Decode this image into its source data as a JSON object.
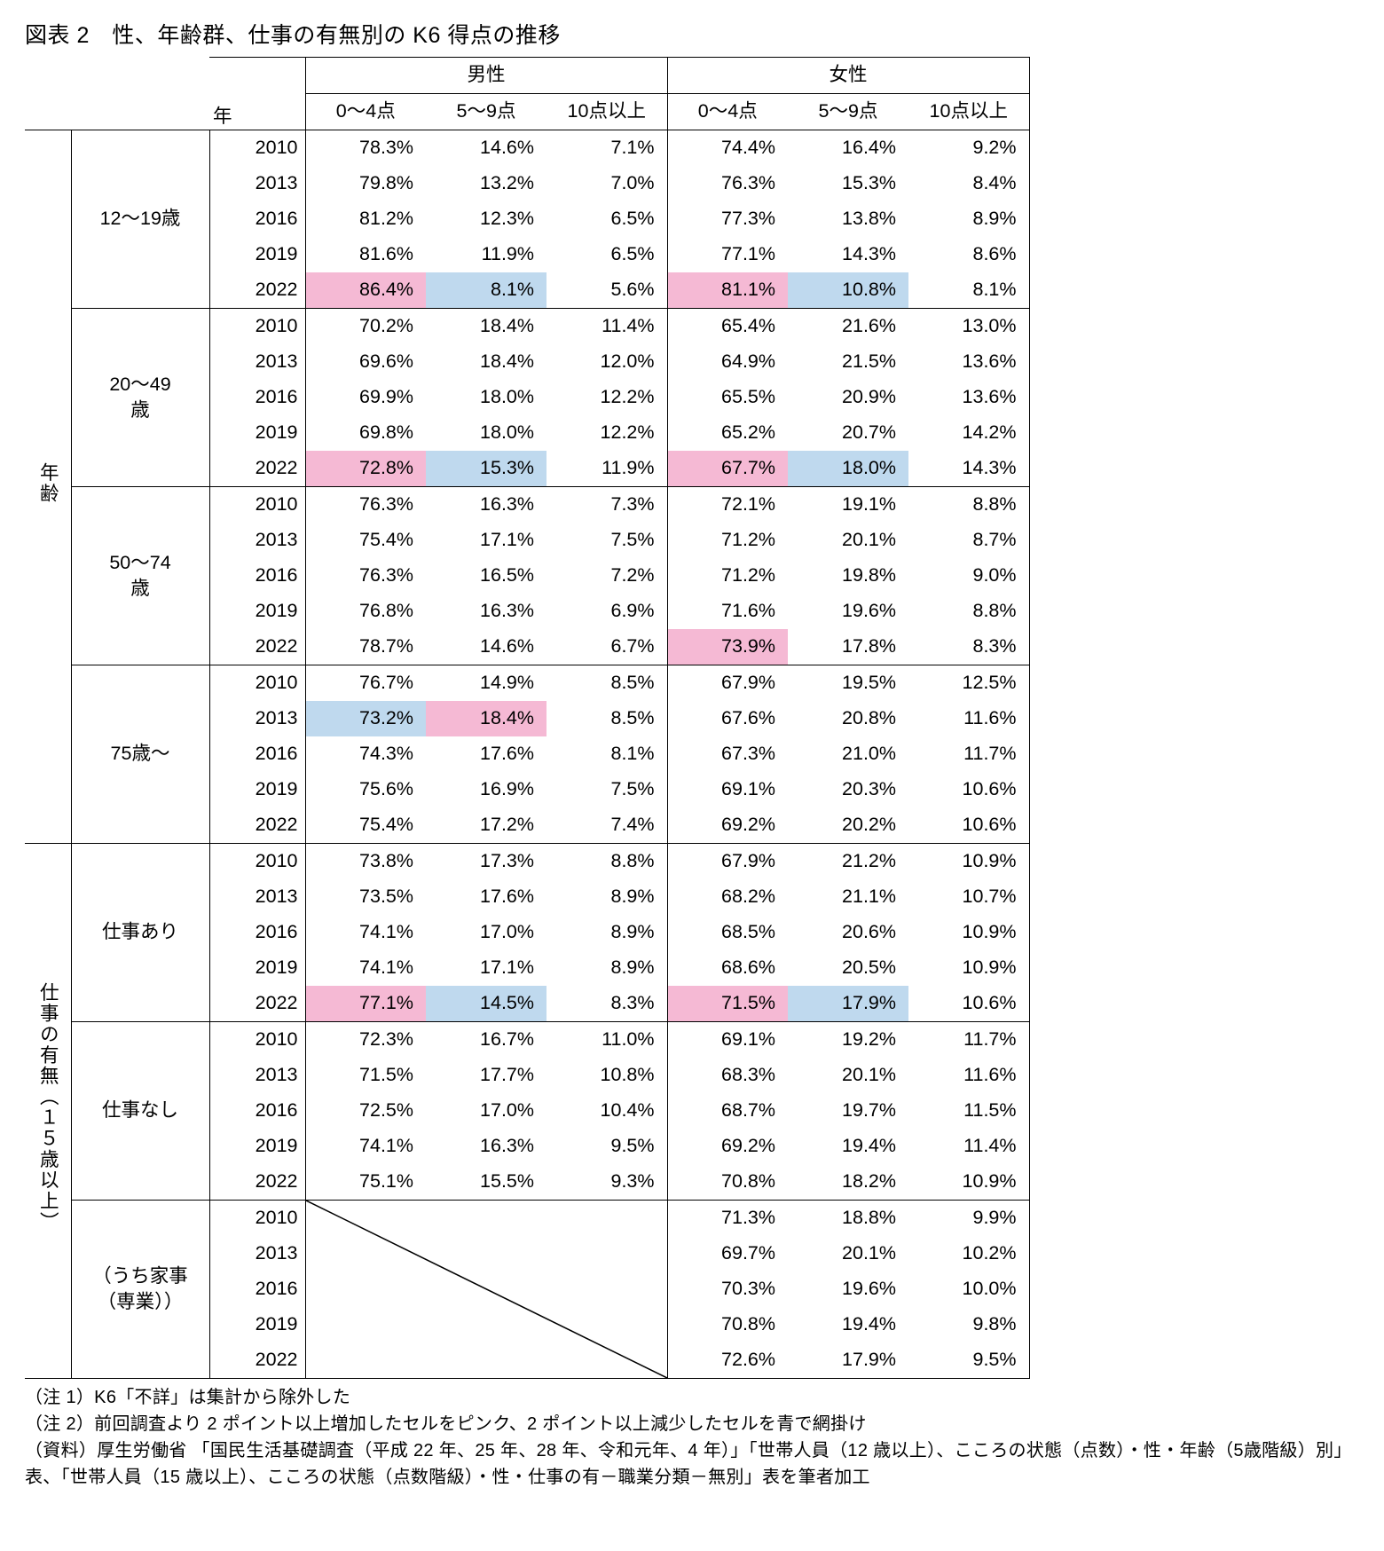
{
  "title": "図表 2　性、年齢群、仕事の有無別の K6 得点の推移",
  "header_year": "年",
  "header_male": "男性",
  "header_female": "女性",
  "cols": [
    "0～4点",
    "5～9点",
    "10点以上"
  ],
  "major_labels": {
    "age": "年齢",
    "work": "仕事の有無（１５歳以上）"
  },
  "groups": [
    {
      "major": "age",
      "sub_label": "12～19歳",
      "rows": [
        {
          "year": "2010",
          "m": [
            "78.3%",
            "14.6%",
            "7.1%"
          ],
          "f": [
            "74.4%",
            "16.4%",
            "9.2%"
          ],
          "mhl": [
            "",
            "",
            ""
          ],
          "fhl": [
            "",
            "",
            ""
          ]
        },
        {
          "year": "2013",
          "m": [
            "79.8%",
            "13.2%",
            "7.0%"
          ],
          "f": [
            "76.3%",
            "15.3%",
            "8.4%"
          ],
          "mhl": [
            "",
            "",
            ""
          ],
          "fhl": [
            "",
            "",
            ""
          ]
        },
        {
          "year": "2016",
          "m": [
            "81.2%",
            "12.3%",
            "6.5%"
          ],
          "f": [
            "77.3%",
            "13.8%",
            "8.9%"
          ],
          "mhl": [
            "",
            "",
            ""
          ],
          "fhl": [
            "",
            "",
            ""
          ]
        },
        {
          "year": "2019",
          "m": [
            "81.6%",
            "11.9%",
            "6.5%"
          ],
          "f": [
            "77.1%",
            "14.3%",
            "8.6%"
          ],
          "mhl": [
            "",
            "",
            ""
          ],
          "fhl": [
            "",
            "",
            ""
          ]
        },
        {
          "year": "2022",
          "m": [
            "86.4%",
            "8.1%",
            "5.6%"
          ],
          "f": [
            "81.1%",
            "10.8%",
            "8.1%"
          ],
          "mhl": [
            "pink",
            "blue",
            ""
          ],
          "fhl": [
            "pink",
            "blue",
            ""
          ]
        }
      ]
    },
    {
      "major": "age",
      "sub_label": "20～49\n歳",
      "rows": [
        {
          "year": "2010",
          "m": [
            "70.2%",
            "18.4%",
            "11.4%"
          ],
          "f": [
            "65.4%",
            "21.6%",
            "13.0%"
          ],
          "mhl": [
            "",
            "",
            ""
          ],
          "fhl": [
            "",
            "",
            ""
          ]
        },
        {
          "year": "2013",
          "m": [
            "69.6%",
            "18.4%",
            "12.0%"
          ],
          "f": [
            "64.9%",
            "21.5%",
            "13.6%"
          ],
          "mhl": [
            "",
            "",
            ""
          ],
          "fhl": [
            "",
            "",
            ""
          ]
        },
        {
          "year": "2016",
          "m": [
            "69.9%",
            "18.0%",
            "12.2%"
          ],
          "f": [
            "65.5%",
            "20.9%",
            "13.6%"
          ],
          "mhl": [
            "",
            "",
            ""
          ],
          "fhl": [
            "",
            "",
            ""
          ]
        },
        {
          "year": "2019",
          "m": [
            "69.8%",
            "18.0%",
            "12.2%"
          ],
          "f": [
            "65.2%",
            "20.7%",
            "14.2%"
          ],
          "mhl": [
            "",
            "",
            ""
          ],
          "fhl": [
            "",
            "",
            ""
          ]
        },
        {
          "year": "2022",
          "m": [
            "72.8%",
            "15.3%",
            "11.9%"
          ],
          "f": [
            "67.7%",
            "18.0%",
            "14.3%"
          ],
          "mhl": [
            "pink",
            "blue",
            ""
          ],
          "fhl": [
            "pink",
            "blue",
            ""
          ]
        }
      ]
    },
    {
      "major": "age",
      "sub_label": "50～74\n歳",
      "rows": [
        {
          "year": "2010",
          "m": [
            "76.3%",
            "16.3%",
            "7.3%"
          ],
          "f": [
            "72.1%",
            "19.1%",
            "8.8%"
          ],
          "mhl": [
            "",
            "",
            ""
          ],
          "fhl": [
            "",
            "",
            ""
          ]
        },
        {
          "year": "2013",
          "m": [
            "75.4%",
            "17.1%",
            "7.5%"
          ],
          "f": [
            "71.2%",
            "20.1%",
            "8.7%"
          ],
          "mhl": [
            "",
            "",
            ""
          ],
          "fhl": [
            "",
            "",
            ""
          ]
        },
        {
          "year": "2016",
          "m": [
            "76.3%",
            "16.5%",
            "7.2%"
          ],
          "f": [
            "71.2%",
            "19.8%",
            "9.0%"
          ],
          "mhl": [
            "",
            "",
            ""
          ],
          "fhl": [
            "",
            "",
            ""
          ]
        },
        {
          "year": "2019",
          "m": [
            "76.8%",
            "16.3%",
            "6.9%"
          ],
          "f": [
            "71.6%",
            "19.6%",
            "8.8%"
          ],
          "mhl": [
            "",
            "",
            ""
          ],
          "fhl": [
            "",
            "",
            ""
          ]
        },
        {
          "year": "2022",
          "m": [
            "78.7%",
            "14.6%",
            "6.7%"
          ],
          "f": [
            "73.9%",
            "17.8%",
            "8.3%"
          ],
          "mhl": [
            "",
            "",
            ""
          ],
          "fhl": [
            "pink",
            "",
            ""
          ]
        }
      ]
    },
    {
      "major": "age",
      "sub_label": "75歳～",
      "rows": [
        {
          "year": "2010",
          "m": [
            "76.7%",
            "14.9%",
            "8.5%"
          ],
          "f": [
            "67.9%",
            "19.5%",
            "12.5%"
          ],
          "mhl": [
            "",
            "",
            ""
          ],
          "fhl": [
            "",
            "",
            ""
          ]
        },
        {
          "year": "2013",
          "m": [
            "73.2%",
            "18.4%",
            "8.5%"
          ],
          "f": [
            "67.6%",
            "20.8%",
            "11.6%"
          ],
          "mhl": [
            "blue",
            "pink",
            ""
          ],
          "fhl": [
            "",
            "",
            ""
          ]
        },
        {
          "year": "2016",
          "m": [
            "74.3%",
            "17.6%",
            "8.1%"
          ],
          "f": [
            "67.3%",
            "21.0%",
            "11.7%"
          ],
          "mhl": [
            "",
            "",
            ""
          ],
          "fhl": [
            "",
            "",
            ""
          ]
        },
        {
          "year": "2019",
          "m": [
            "75.6%",
            "16.9%",
            "7.5%"
          ],
          "f": [
            "69.1%",
            "20.3%",
            "10.6%"
          ],
          "mhl": [
            "",
            "",
            ""
          ],
          "fhl": [
            "",
            "",
            ""
          ]
        },
        {
          "year": "2022",
          "m": [
            "75.4%",
            "17.2%",
            "7.4%"
          ],
          "f": [
            "69.2%",
            "20.2%",
            "10.6%"
          ],
          "mhl": [
            "",
            "",
            ""
          ],
          "fhl": [
            "",
            "",
            ""
          ]
        }
      ]
    },
    {
      "major": "work",
      "sub_label": "仕事あり",
      "rows": [
        {
          "year": "2010",
          "m": [
            "73.8%",
            "17.3%",
            "8.8%"
          ],
          "f": [
            "67.9%",
            "21.2%",
            "10.9%"
          ],
          "mhl": [
            "",
            "",
            ""
          ],
          "fhl": [
            "",
            "",
            ""
          ]
        },
        {
          "year": "2013",
          "m": [
            "73.5%",
            "17.6%",
            "8.9%"
          ],
          "f": [
            "68.2%",
            "21.1%",
            "10.7%"
          ],
          "mhl": [
            "",
            "",
            ""
          ],
          "fhl": [
            "",
            "",
            ""
          ]
        },
        {
          "year": "2016",
          "m": [
            "74.1%",
            "17.0%",
            "8.9%"
          ],
          "f": [
            "68.5%",
            "20.6%",
            "10.9%"
          ],
          "mhl": [
            "",
            "",
            ""
          ],
          "fhl": [
            "",
            "",
            ""
          ]
        },
        {
          "year": "2019",
          "m": [
            "74.1%",
            "17.1%",
            "8.9%"
          ],
          "f": [
            "68.6%",
            "20.5%",
            "10.9%"
          ],
          "mhl": [
            "",
            "",
            ""
          ],
          "fhl": [
            "",
            "",
            ""
          ]
        },
        {
          "year": "2022",
          "m": [
            "77.1%",
            "14.5%",
            "8.3%"
          ],
          "f": [
            "71.5%",
            "17.9%",
            "10.6%"
          ],
          "mhl": [
            "pink",
            "blue",
            ""
          ],
          "fhl": [
            "pink",
            "blue",
            ""
          ]
        }
      ]
    },
    {
      "major": "work",
      "sub_label": "仕事なし",
      "rows": [
        {
          "year": "2010",
          "m": [
            "72.3%",
            "16.7%",
            "11.0%"
          ],
          "f": [
            "69.1%",
            "19.2%",
            "11.7%"
          ],
          "mhl": [
            "",
            "",
            ""
          ],
          "fhl": [
            "",
            "",
            ""
          ]
        },
        {
          "year": "2013",
          "m": [
            "71.5%",
            "17.7%",
            "10.8%"
          ],
          "f": [
            "68.3%",
            "20.1%",
            "11.6%"
          ],
          "mhl": [
            "",
            "",
            ""
          ],
          "fhl": [
            "",
            "",
            ""
          ]
        },
        {
          "year": "2016",
          "m": [
            "72.5%",
            "17.0%",
            "10.4%"
          ],
          "f": [
            "68.7%",
            "19.7%",
            "11.5%"
          ],
          "mhl": [
            "",
            "",
            ""
          ],
          "fhl": [
            "",
            "",
            ""
          ]
        },
        {
          "year": "2019",
          "m": [
            "74.1%",
            "16.3%",
            "9.5%"
          ],
          "f": [
            "69.2%",
            "19.4%",
            "11.4%"
          ],
          "mhl": [
            "",
            "",
            ""
          ],
          "fhl": [
            "",
            "",
            ""
          ]
        },
        {
          "year": "2022",
          "m": [
            "75.1%",
            "15.5%",
            "9.3%"
          ],
          "f": [
            "70.8%",
            "18.2%",
            "10.9%"
          ],
          "mhl": [
            "",
            "",
            ""
          ],
          "fhl": [
            "",
            "",
            ""
          ]
        }
      ]
    },
    {
      "major": "work",
      "sub_label": "（うち家事\n（専業））",
      "male_na": true,
      "rows": [
        {
          "year": "2010",
          "m": [
            "",
            "",
            ""
          ],
          "f": [
            "71.3%",
            "18.8%",
            "9.9%"
          ],
          "mhl": [
            "",
            "",
            ""
          ],
          "fhl": [
            "",
            "",
            ""
          ]
        },
        {
          "year": "2013",
          "m": [
            "",
            "",
            ""
          ],
          "f": [
            "69.7%",
            "20.1%",
            "10.2%"
          ],
          "mhl": [
            "",
            "",
            ""
          ],
          "fhl": [
            "",
            "",
            ""
          ]
        },
        {
          "year": "2016",
          "m": [
            "",
            "",
            ""
          ],
          "f": [
            "70.3%",
            "19.6%",
            "10.0%"
          ],
          "mhl": [
            "",
            "",
            ""
          ],
          "fhl": [
            "",
            "",
            ""
          ]
        },
        {
          "year": "2019",
          "m": [
            "",
            "",
            ""
          ],
          "f": [
            "70.8%",
            "19.4%",
            "9.8%"
          ],
          "mhl": [
            "",
            "",
            ""
          ],
          "fhl": [
            "",
            "",
            ""
          ]
        },
        {
          "year": "2022",
          "m": [
            "",
            "",
            ""
          ],
          "f": [
            "72.6%",
            "17.9%",
            "9.5%"
          ],
          "mhl": [
            "",
            "",
            ""
          ],
          "fhl": [
            "",
            "",
            ""
          ]
        }
      ]
    }
  ],
  "notes": [
    "（注 1）K6「不詳」は集計から除外した",
    "（注 2）前回調査より 2 ポイント以上増加したセルをピンク、2 ポイント以上減少したセルを青で網掛け",
    "（資料）厚生労働省 「国民生活基礎調査（平成 22 年、25 年、28 年、令和元年、4 年）」「世帯人員（12 歳以上）、こころの状態（点数）・性・年齢（5歳階級）別」表、「世帯人員（15 歳以上）、こころの状態（点数階級）・性・仕事の有－職業分類－無別」表を筆者加工"
  ]
}
